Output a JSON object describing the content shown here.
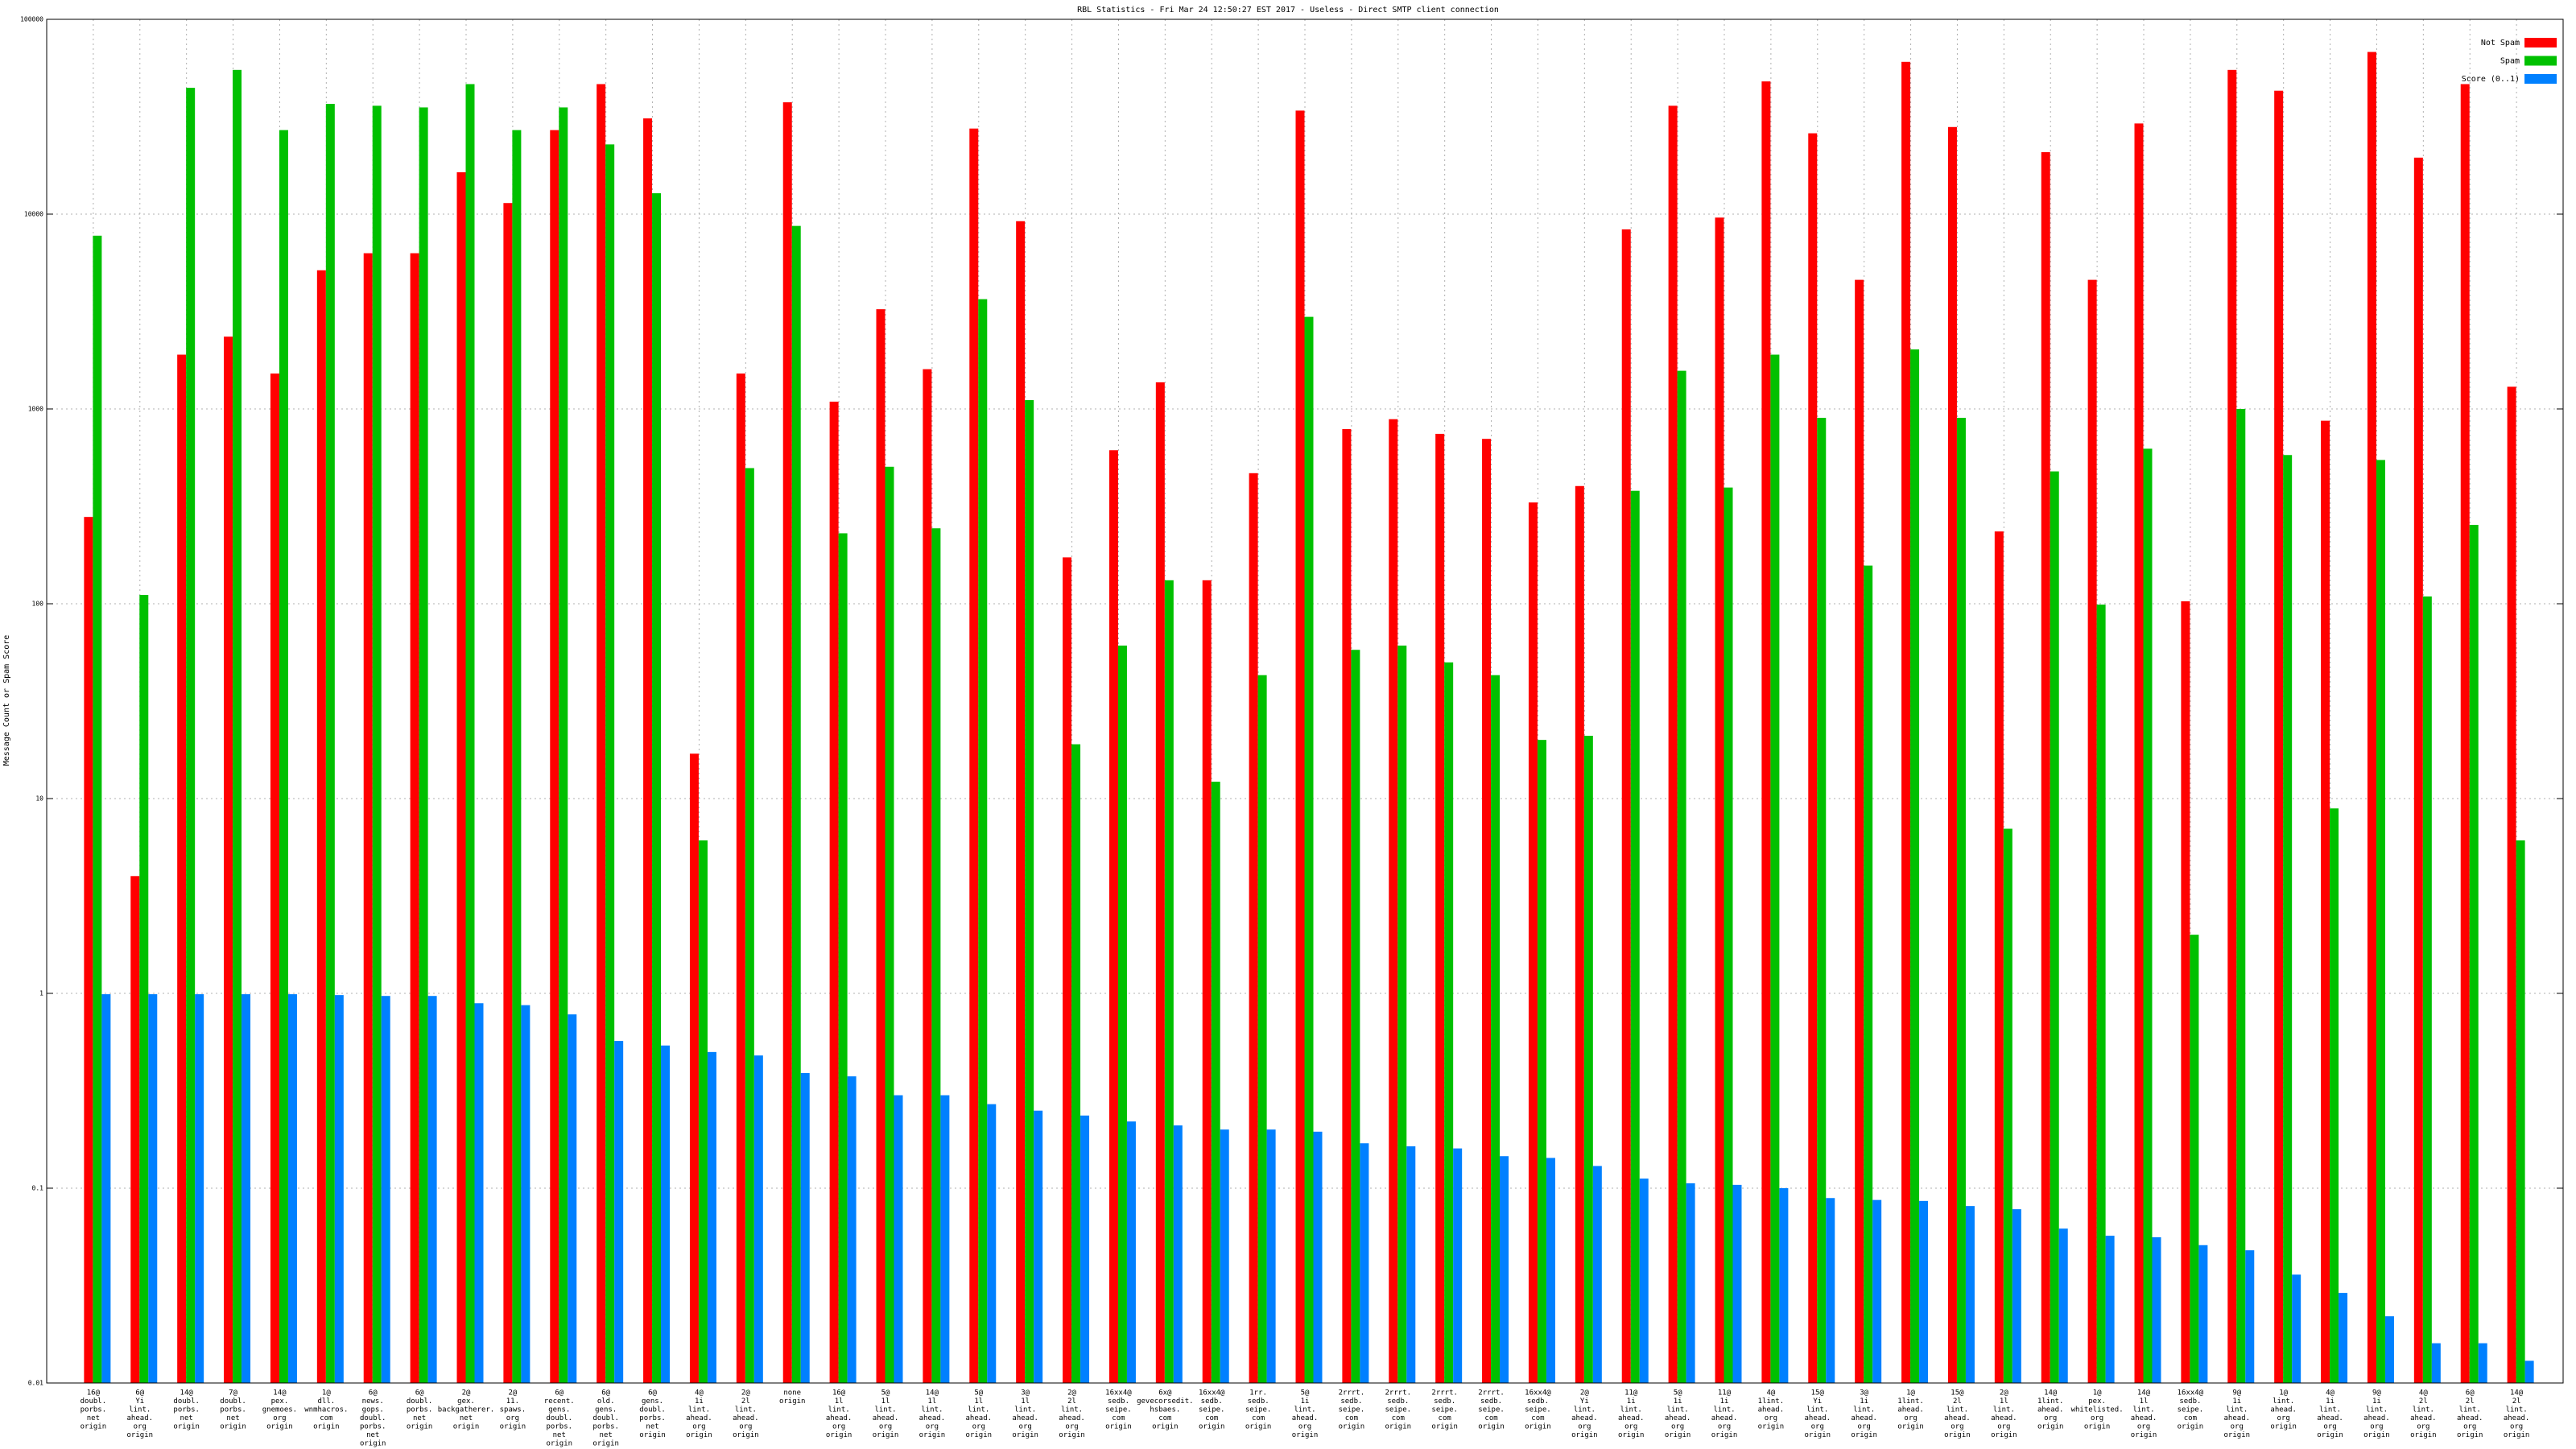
{
  "chart_data": {
    "type": "bar",
    "title": "RBL Statistics - Fri Mar 24 12:50:27 EST 2017 - Useless - Direct SMTP client connection",
    "y_label": "Message Count or Spam Score",
    "yscale": "log",
    "grid": true,
    "legend": "upper right",
    "ylim": [
      0.01,
      100000
    ],
    "yticks": [
      0.01,
      0.1,
      1,
      10,
      100,
      1000,
      10000,
      100000
    ],
    "categories": [
      [
        "16@",
        "doubl.",
        "porbs.",
        "net",
        "origin"
      ],
      [
        "6@",
        "Yi",
        "lint.",
        "ahead.",
        "org",
        "origin"
      ],
      [
        "14@",
        "doubl.",
        "porbs.",
        "net",
        "origin"
      ],
      [
        "7@",
        "doubl.",
        "porbs.",
        "net",
        "origin"
      ],
      [
        "14@",
        "pex.",
        "gnemoes.",
        "org",
        "origin"
      ],
      [
        "1@",
        "dll.",
        "wnmhacros.",
        "com",
        "origin"
      ],
      [
        "6@",
        "news.",
        "gops.",
        "doubl.",
        "porbs.",
        "net",
        "origin"
      ],
      [
        "6@",
        "doubl.",
        "porbs.",
        "net",
        "origin"
      ],
      [
        "2@",
        "gex.",
        "backgatherer.",
        "net",
        "origin"
      ],
      [
        "2@",
        "11.",
        "spaws.",
        "org",
        "origin"
      ],
      [
        "6@",
        "recent.",
        "gens.",
        "doubl.",
        "porbs.",
        "net",
        "origin"
      ],
      [
        "6@",
        "old.",
        "gens.",
        "doubl.",
        "porbs.",
        "net",
        "origin"
      ],
      [
        "6@",
        "gens.",
        "doubl.",
        "porbs.",
        "net",
        "origin"
      ],
      [
        "4@",
        "1i",
        "lint.",
        "ahead.",
        "org",
        "origin"
      ],
      [
        "2@",
        "2l",
        "lint.",
        "ahead.",
        "org",
        "origin"
      ],
      [
        "none",
        "origin"
      ],
      [
        "16@",
        "1l",
        "lint.",
        "ahead.",
        "org",
        "origin"
      ],
      [
        "5@",
        "1l",
        "lint.",
        "ahead.",
        "org",
        "origin"
      ],
      [
        "14@",
        "1l",
        "lint.",
        "ahead.",
        "org",
        "origin"
      ],
      [
        "5@",
        "1l",
        "lint.",
        "ahead.",
        "org",
        "origin"
      ],
      [
        "3@",
        "1l",
        "lint.",
        "ahead.",
        "org",
        "origin"
      ],
      [
        "2@",
        "2l",
        "lint.",
        "ahead.",
        "org",
        "origin"
      ],
      [
        "16xx4@",
        "sedb.",
        "seipe.",
        "com",
        "origin"
      ],
      [
        "6x@",
        "gevecorsedit.",
        "hsbaes.",
        "com",
        "origin"
      ],
      [
        "16xx4@",
        "sedb.",
        "seipe.",
        "com",
        "origin"
      ],
      [
        "1rr.",
        "sedb.",
        "seipe.",
        "com",
        "origin"
      ],
      [
        "5@",
        "1i",
        "lint.",
        "ahead.",
        "org",
        "origin"
      ],
      [
        "2rrrt.",
        "sedb.",
        "seipe.",
        "com",
        "origin"
      ],
      [
        "2rrrt.",
        "sedb.",
        "seipe.",
        "com",
        "origin"
      ],
      [
        "2rrrt.",
        "sedb.",
        "seipe.",
        "com",
        "origin"
      ],
      [
        "2rrrt.",
        "sedb.",
        "seipe.",
        "com",
        "origin"
      ],
      [
        "16xx4@",
        "sedb.",
        "seipe.",
        "com",
        "origin"
      ],
      [
        "2@",
        "Yi",
        "lint.",
        "ahead.",
        "org",
        "origin"
      ],
      [
        "11@",
        "1i",
        "lint.",
        "ahead.",
        "org",
        "origin"
      ],
      [
        "5@",
        "1i",
        "lint.",
        "ahead.",
        "org",
        "origin"
      ],
      [
        "11@",
        "1i",
        "lint.",
        "ahead.",
        "org",
        "origin"
      ],
      [
        "4@",
        "1lint.",
        "ahead.",
        "org",
        "origin"
      ],
      [
        "15@",
        "Yi",
        "lint.",
        "ahead.",
        "org",
        "origin"
      ],
      [
        "3@",
        "1i",
        "lint.",
        "ahead.",
        "org",
        "origin"
      ],
      [
        "1@",
        "1lint.",
        "ahead.",
        "org",
        "origin"
      ],
      [
        "15@",
        "2l",
        "lint.",
        "ahead.",
        "org",
        "origin"
      ],
      [
        "2@",
        "1l",
        "lint.",
        "ahead.",
        "org",
        "origin"
      ],
      [
        "14@",
        "1lint.",
        "ahead.",
        "org",
        "origin"
      ],
      [
        "1@",
        "pex.",
        "whitelisted.",
        "org",
        "origin"
      ],
      [
        "14@",
        "1l",
        "lint.",
        "ahead.",
        "org",
        "origin"
      ],
      [
        "16xx4@",
        "sedb.",
        "seipe.",
        "com",
        "origin"
      ],
      [
        "9@",
        "1i",
        "lint.",
        "ahead.",
        "org",
        "origin"
      ],
      [
        "1@",
        "lint.",
        "ahead.",
        "org",
        "origin"
      ],
      [
        "4@",
        "1i",
        "lint.",
        "ahead.",
        "org",
        "origin"
      ],
      [
        "9@",
        "1i",
        "lint.",
        "ahead.",
        "org",
        "origin"
      ],
      [
        "4@",
        "2l",
        "lint.",
        "ahead.",
        "org",
        "origin"
      ],
      [
        "6@",
        "2l",
        "lint.",
        "ahead.",
        "org",
        "origin"
      ],
      [
        "14@",
        "2l",
        "lint.",
        "ahead.",
        "org",
        "origin"
      ]
    ],
    "series": [
      {
        "name": "Not Spam",
        "color": "#ff0000",
        "values": [
          279,
          4,
          1900,
          2350,
          1520,
          5150,
          6300,
          6300,
          16400,
          11400,
          27000,
          46500,
          31000,
          17,
          1520,
          37500,
          1090,
          3250,
          1600,
          27500,
          9200,
          173,
          614,
          1370,
          132,
          468,
          34000,
          788,
          886,
          745,
          702,
          331,
          402,
          8350,
          36000,
          9600,
          48000,
          26000,
          4600,
          60500,
          28000,
          235,
          20800,
          4600,
          29200,
          103,
          55000,
          43000,
          870,
          68000,
          19500,
          46500,
          1300
        ]
      },
      {
        "name": "Spam",
        "color": "#00c000",
        "values": [
          7750,
          111,
          44500,
          55000,
          27000,
          36800,
          36000,
          35300,
          46500,
          27000,
          35300,
          22800,
          12800,
          6.1,
          497,
          8700,
          230,
          505,
          244,
          3660,
          1110,
          19,
          61,
          132,
          12.2,
          43,
          2970,
          58,
          61,
          50,
          43,
          20,
          21,
          380,
          1570,
          395,
          1900,
          900,
          157,
          2020,
          900,
          7,
          478,
          99,
          625,
          2,
          1000,
          580,
          8.9,
          547,
          109,
          254,
          6.1
        ]
      },
      {
        "name": "Score (0..1)",
        "color": "#0080ff",
        "values": [
          0.99,
          0.99,
          0.99,
          0.99,
          0.99,
          0.98,
          0.97,
          0.97,
          0.89,
          0.87,
          0.78,
          0.57,
          0.54,
          0.5,
          0.48,
          0.39,
          0.375,
          0.3,
          0.3,
          0.27,
          0.25,
          0.236,
          0.22,
          0.21,
          0.2,
          0.2,
          0.195,
          0.17,
          0.164,
          0.16,
          0.146,
          0.143,
          0.13,
          0.112,
          0.106,
          0.104,
          0.1,
          0.089,
          0.087,
          0.086,
          0.081,
          0.078,
          0.062,
          0.057,
          0.056,
          0.051,
          0.048,
          0.036,
          0.029,
          0.022,
          0.016,
          0.016,
          0.013
        ]
      }
    ]
  }
}
